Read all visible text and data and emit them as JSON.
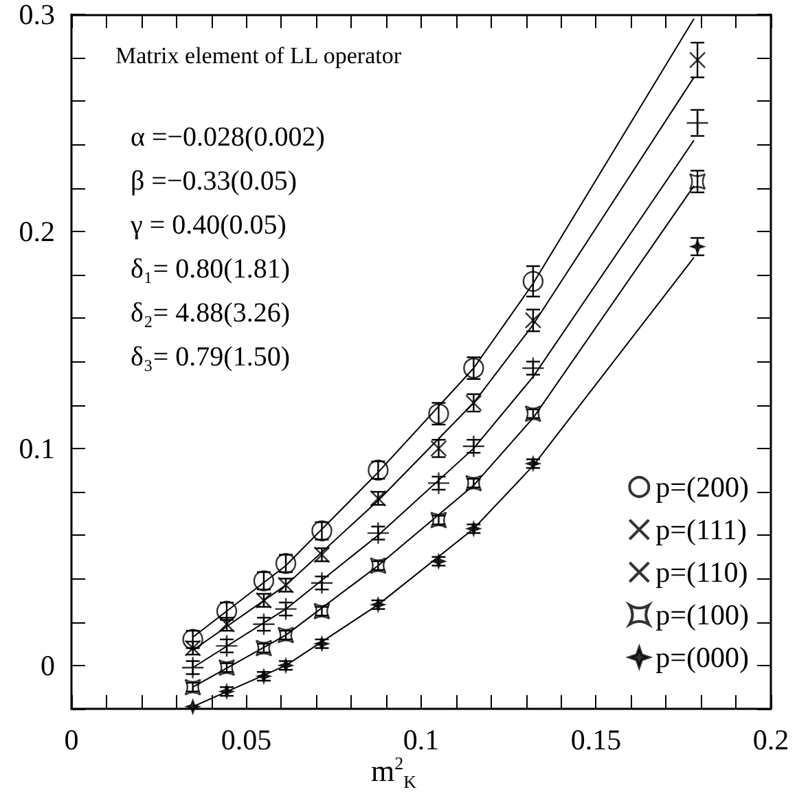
{
  "chart_data": {
    "type": "scatter",
    "title": "Matrix element of LL operator",
    "xlabel": "m$^{2}$$_{K}$",
    "annotations": [
      "α =−0.028(0.002)",
      "β =−0.33(0.05)",
      "γ = 0.40(0.05)",
      "δ₁= 0.80(1.81)",
      "δ₂= 4.88(3.26)",
      "δ₃= 0.79(1.50)"
    ],
    "x": [
      0.0347,
      0.0444,
      0.055,
      0.0613,
      0.0716,
      0.0877,
      0.105,
      0.115,
      0.132,
      0.179
    ],
    "xlim": [
      0,
      0.2
    ],
    "ylim": [
      -0.02,
      0.3
    ],
    "xticks": [
      0,
      {
        "value": 0.01,
        "label": null
      },
      {
        "value": 0.02,
        "label": null
      },
      {
        "value": 0.03,
        "label": null
      },
      {
        "value": 0.04,
        "label": null
      },
      0.05,
      {
        "value": 0.06,
        "label": null
      },
      {
        "value": 0.07,
        "label": null
      },
      {
        "value": 0.08,
        "label": null
      },
      {
        "value": 0.09,
        "label": null
      },
      0.1,
      {
        "value": 0.11,
        "label": null
      },
      {
        "value": 0.12,
        "label": null
      },
      {
        "value": 0.13,
        "label": null
      },
      {
        "value": 0.14,
        "label": null
      },
      0.15,
      {
        "value": 0.16,
        "label": null
      },
      {
        "value": 0.17,
        "label": null
      },
      {
        "value": 0.18,
        "label": null
      },
      {
        "value": 0.19,
        "label": null
      },
      0.2
    ],
    "yticks": [
      {
        "value": -0.02,
        "label": null
      },
      0,
      {
        "value": 0.02,
        "label": null
      },
      {
        "value": 0.04,
        "label": null
      },
      {
        "value": 0.06,
        "label": null
      },
      {
        "value": 0.08,
        "label": null
      },
      0.1,
      {
        "value": 0.12,
        "label": null
      },
      {
        "value": 0.14,
        "label": null
      },
      {
        "value": 0.16,
        "label": null
      },
      {
        "value": 0.18,
        "label": null
      },
      0.2,
      {
        "value": 0.22,
        "label": null
      },
      {
        "value": 0.24,
        "label": null
      },
      {
        "value": 0.26,
        "label": null
      },
      {
        "value": 0.28,
        "label": null
      },
      0.3
    ],
    "grid": false,
    "legend": "bottom right",
    "series": [
      {
        "name": "p=(200)",
        "color": "#000000",
        "marker": "circle",
        "x": [
          0.0347,
          0.0444,
          0.055,
          0.0613,
          0.0716,
          0.0877,
          0.105,
          0.115,
          0.132
        ],
        "values": [
          0.012,
          0.025,
          0.039,
          0.047,
          0.062,
          0.09,
          0.116,
          0.137,
          0.177
        ],
        "errors": [
          0.004,
          0.004,
          0.004,
          0.004,
          0.004,
          0.004,
          0.005,
          0.005,
          0.007
        ]
      },
      {
        "name": "p=(111)",
        "color": "#000000",
        "marker": "cross",
        "values": [
          0.008,
          0.019,
          0.03,
          0.037,
          0.051,
          0.077,
          0.1,
          0.121,
          0.159,
          0.279
        ],
        "errors": [
          0.003,
          0.003,
          0.003,
          0.003,
          0.003,
          0.003,
          0.004,
          0.004,
          0.005,
          0.008
        ]
      },
      {
        "name": "p=(110)",
        "color": "#000000",
        "marker": "cross",
        "values": [
          -0.001,
          0.009,
          0.019,
          0.026,
          0.038,
          0.061,
          0.084,
          0.101,
          0.137,
          0.25
        ],
        "errors": [
          0.003,
          0.003,
          0.003,
          0.003,
          0.003,
          0.003,
          0.003,
          0.003,
          0.003,
          0.006
        ]
      },
      {
        "name": "p=(100)",
        "color": "#000000",
        "marker": "square",
        "values": [
          -0.01,
          -0.001,
          0.008,
          0.014,
          0.025,
          0.046,
          0.067,
          0.084,
          0.116,
          0.223
        ],
        "errors": [
          0.002,
          0.002,
          0.002,
          0.002,
          0.002,
          0.002,
          0.002,
          0.002,
          0.002,
          0.005
        ]
      },
      {
        "name": "p=(000)",
        "color": "#000000",
        "marker": "star",
        "values": [
          -0.019,
          -0.012,
          -0.005,
          0.0,
          0.01,
          0.028,
          0.048,
          0.063,
          0.093,
          0.193
        ],
        "errors": [
          null,
          0.002,
          0.002,
          0.002,
          0.002,
          0.002,
          0.002,
          0.002,
          0.002,
          0.004
        ]
      },
      {
        "type": "line",
        "color": "#000000",
        "marker": "none",
        "x": [
          0.0347,
          0.0613,
          0.0877,
          0.115,
          0.132,
          0.178
        ],
        "values": [
          0.013,
          0.046,
          0.089,
          0.137,
          0.176,
          0.298
        ]
      },
      {
        "type": "line",
        "color": "#000000",
        "marker": "none",
        "x": [
          0.0347,
          0.0613,
          0.0877,
          0.115,
          0.132,
          0.178
        ],
        "values": [
          0.007,
          0.037,
          0.076,
          0.121,
          0.157,
          0.271
        ]
      },
      {
        "type": "line",
        "color": "#000000",
        "marker": "none",
        "x": [
          0.0347,
          0.0613,
          0.0877,
          0.115,
          0.132,
          0.178
        ],
        "values": [
          -0.001,
          0.026,
          0.06,
          0.1,
          0.133,
          0.242
        ]
      },
      {
        "type": "line",
        "color": "#000000",
        "marker": "none",
        "x": [
          0.0347,
          0.0613,
          0.0877,
          0.115,
          0.132,
          0.178
        ],
        "values": [
          -0.01,
          0.014,
          0.046,
          0.083,
          0.114,
          0.221
        ]
      },
      {
        "type": "line",
        "color": "#000000",
        "marker": "none",
        "x": [
          0.0347,
          0.0613,
          0.0877,
          0.115,
          0.132,
          0.178
        ],
        "values": [
          -0.019,
          0.0,
          0.028,
          0.063,
          0.092,
          0.188
        ]
      }
    ]
  }
}
